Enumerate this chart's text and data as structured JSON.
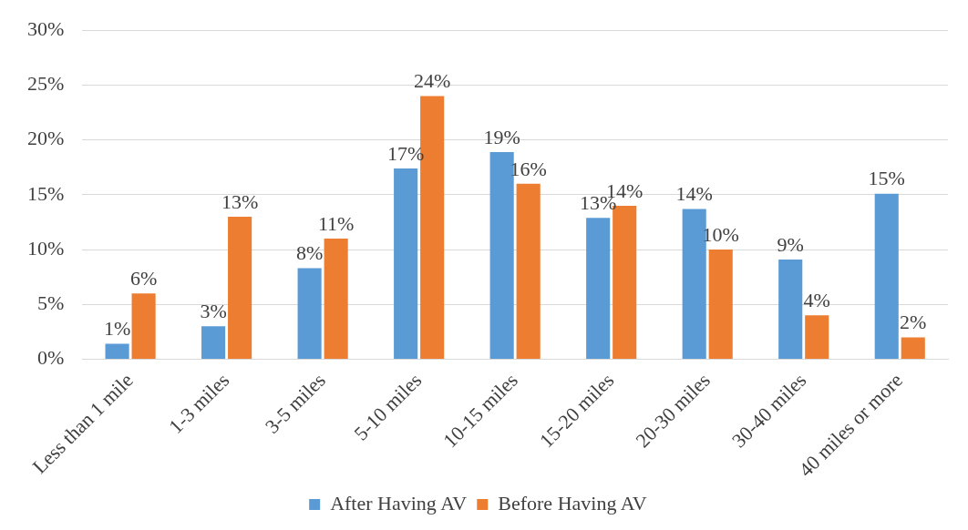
{
  "chart_data": {
    "type": "bar",
    "categories": [
      "Less than 1 mile",
      "1-3 miles",
      "3-5 miles",
      "5-10 miles",
      "10-15 miles",
      "15-20 miles",
      "20-30 miles",
      "30-40 miles",
      "40 miles or more"
    ],
    "series": [
      {
        "name": "After Having AV",
        "color": "#5b9bd5",
        "values": [
          1.4,
          3,
          8.3,
          17.4,
          18.9,
          12.9,
          13.7,
          9.1,
          15.1
        ],
        "value_labels": [
          "1%",
          "3%",
          "8%",
          "17%",
          "19%",
          "13%",
          "14%",
          "9%",
          "15%"
        ]
      },
      {
        "name": "Before Having AV",
        "color": "#ed7d31",
        "values": [
          6,
          13,
          11,
          24,
          16,
          14,
          10,
          4,
          2
        ],
        "value_labels": [
          "6%",
          "13%",
          "11%",
          "24%",
          "16%",
          "14%",
          "10%",
          "4%",
          "2%"
        ]
      }
    ],
    "ylim": [
      0,
      30
    ],
    "yticks": [
      {
        "value": 0,
        "label": "0%"
      },
      {
        "value": 5,
        "label": "5%"
      },
      {
        "value": 10,
        "label": "10%"
      },
      {
        "value": 15,
        "label": "15%"
      },
      {
        "value": 20,
        "label": "20%"
      },
      {
        "value": 25,
        "label": "25%"
      },
      {
        "value": 30,
        "label": "30%"
      }
    ],
    "grid": "y",
    "legend": "bottom"
  }
}
